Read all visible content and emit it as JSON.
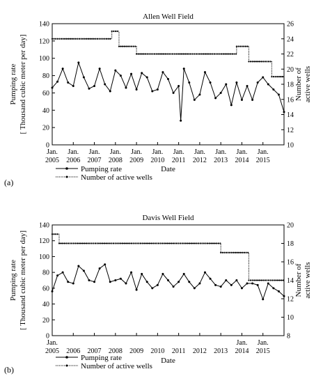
{
  "chart_data": [
    {
      "type": "line",
      "panel_label": "(a)",
      "title": "Allen Well Field",
      "xlabel": "Date",
      "ylabel_left": [
        "Pumping rate",
        "[ Thousand cubic meter per day]"
      ],
      "ylabel_right": [
        "Number of",
        "active wells"
      ],
      "xlim": [
        2005.0,
        2016.0
      ],
      "ylim_left": [
        0,
        140
      ],
      "ylim_right": [
        10,
        26
      ],
      "yticks_left": [
        0,
        20,
        40,
        60,
        80,
        100,
        120,
        140
      ],
      "yticks_right": [
        10,
        12,
        14,
        16,
        18,
        20,
        22,
        24,
        26
      ],
      "x_tick_labels": [
        {
          "x": 2005,
          "top": "Jan.",
          "bottom": "2005"
        },
        {
          "x": 2006,
          "top": "Jan.",
          "bottom": "2006"
        },
        {
          "x": 2007,
          "top": "Jan.",
          "bottom": "2007"
        },
        {
          "x": 2008,
          "top": "Jan.",
          "bottom": "2008"
        },
        {
          "x": 2009,
          "top": "Jan.",
          "bottom": "2009"
        },
        {
          "x": 2010,
          "top": "Jan.",
          "bottom": "2010"
        },
        {
          "x": 2011,
          "top": "Jan.",
          "bottom": "2011"
        },
        {
          "x": 2012,
          "top": "Jan.",
          "bottom": "2012"
        },
        {
          "x": 2013,
          "top": "Jan.",
          "bottom": "2013"
        },
        {
          "x": 2014,
          "top": "Jan.",
          "bottom": "2014"
        },
        {
          "x": 2015,
          "top": "Jan.",
          "bottom": "2015"
        }
      ],
      "legend": "bottom-left",
      "grid": false,
      "series": [
        {
          "name": "Pumping rate",
          "axis": "left",
          "marker": "circle",
          "x": [
            2005.0,
            2005.25,
            2005.5,
            2005.75,
            2006.0,
            2006.25,
            2006.5,
            2006.75,
            2007.0,
            2007.25,
            2007.5,
            2007.75,
            2008.0,
            2008.25,
            2008.5,
            2008.75,
            2009.0,
            2009.25,
            2009.5,
            2009.75,
            2010.0,
            2010.25,
            2010.5,
            2010.75,
            2011.0,
            2011.1,
            2011.25,
            2011.5,
            2011.75,
            2012.0,
            2012.25,
            2012.5,
            2012.75,
            2013.0,
            2013.25,
            2013.5,
            2013.75,
            2014.0,
            2014.25,
            2014.5,
            2014.75,
            2015.0,
            2015.25,
            2015.5,
            2015.75,
            2016.0
          ],
          "values": [
            66,
            73,
            88,
            72,
            68,
            95,
            78,
            65,
            68,
            88,
            70,
            62,
            86,
            80,
            66,
            82,
            64,
            83,
            78,
            62,
            64,
            84,
            76,
            60,
            68,
            28,
            88,
            72,
            52,
            58,
            84,
            72,
            54,
            60,
            70,
            46,
            72,
            52,
            68,
            52,
            72,
            78,
            70,
            64,
            58,
            38
          ]
        },
        {
          "name": "Number of active wells",
          "axis": "right",
          "marker": "dot",
          "step": true,
          "x": [
            2005.0,
            2007.83,
            2008.17,
            2009.0,
            2013.75,
            2014.33,
            2015.42,
            2016.0
          ],
          "values": [
            24,
            25,
            23,
            22,
            23,
            21,
            19,
            19
          ]
        }
      ]
    },
    {
      "type": "line",
      "panel_label": "(b)",
      "title": "Davis Well Field",
      "xlabel": "Date",
      "ylabel_left": [
        "Pumping rate",
        "[ Thousand cubic meter per day]"
      ],
      "ylabel_right": [
        "Number of",
        "active wells"
      ],
      "xlim": [
        2005.0,
        2016.0
      ],
      "ylim_left": [
        0,
        140
      ],
      "ylim_right": [
        8,
        20
      ],
      "yticks_left": [
        0,
        20,
        40,
        60,
        80,
        100,
        120,
        140
      ],
      "yticks_right": [
        8,
        10,
        12,
        14,
        16,
        18,
        20
      ],
      "x_tick_labels": [
        {
          "x": 2005,
          "top": "Jan.",
          "bottom": "2005"
        },
        {
          "x": 2006,
          "top": "",
          "bottom": "2006"
        },
        {
          "x": 2007,
          "top": "",
          "bottom": "2007"
        },
        {
          "x": 2008,
          "top": "",
          "bottom": "2008"
        },
        {
          "x": 2009,
          "top": "",
          "bottom": "2009"
        },
        {
          "x": 2010,
          "top": "",
          "bottom": "2010"
        },
        {
          "x": 2011,
          "top": "",
          "bottom": "2011"
        },
        {
          "x": 2012,
          "top": "",
          "bottom": "2012"
        },
        {
          "x": 2013,
          "top": "",
          "bottom": "2013"
        },
        {
          "x": 2014,
          "top": "Jan.",
          "bottom": "2014"
        },
        {
          "x": 2015,
          "top": "Jan.",
          "bottom": "2015"
        }
      ],
      "legend": "bottom-left",
      "grid": false,
      "series": [
        {
          "name": "Pumping rate",
          "axis": "left",
          "marker": "circle",
          "x": [
            2005.0,
            2005.25,
            2005.5,
            2005.75,
            2006.0,
            2006.25,
            2006.5,
            2006.75,
            2007.0,
            2007.25,
            2007.5,
            2007.75,
            2008.0,
            2008.25,
            2008.5,
            2008.75,
            2009.0,
            2009.25,
            2009.5,
            2009.75,
            2010.0,
            2010.25,
            2010.5,
            2010.75,
            2011.0,
            2011.25,
            2011.5,
            2011.75,
            2012.0,
            2012.25,
            2012.5,
            2012.75,
            2013.0,
            2013.25,
            2013.5,
            2013.75,
            2014.0,
            2014.25,
            2014.5,
            2014.75,
            2015.0,
            2015.25,
            2015.5,
            2015.75,
            2016.0
          ],
          "values": [
            56,
            76,
            80,
            68,
            66,
            88,
            82,
            70,
            68,
            85,
            90,
            68,
            70,
            72,
            66,
            80,
            58,
            78,
            68,
            60,
            64,
            78,
            70,
            62,
            68,
            78,
            68,
            60,
            66,
            80,
            72,
            64,
            62,
            70,
            64,
            70,
            60,
            66,
            66,
            64,
            46,
            66,
            60,
            56,
            50
          ]
        },
        {
          "name": "Number of active wells",
          "axis": "right",
          "marker": "dot",
          "step": true,
          "x": [
            2005.0,
            2005.33,
            2013.0,
            2014.33,
            2016.0
          ],
          "values": [
            19,
            18,
            17,
            14,
            14
          ]
        }
      ]
    }
  ]
}
